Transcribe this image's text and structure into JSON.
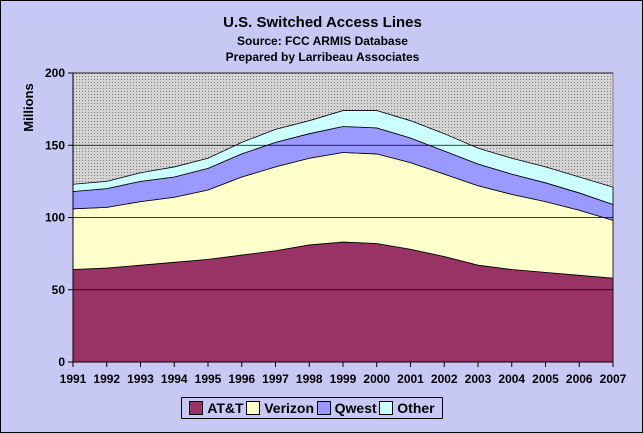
{
  "chart_data": {
    "type": "area",
    "stacked": true,
    "title": "U.S. Switched Access Lines",
    "subtitle": [
      "Source: FCC ARMIS Database",
      "Prepared by Larribeau Associates"
    ],
    "xlabel": "",
    "ylabel": "Millions",
    "ylim": [
      0,
      200
    ],
    "yticks": [
      0,
      50,
      100,
      150,
      200
    ],
    "x": [
      "1991",
      "1992",
      "1993",
      "1994",
      "1995",
      "1996",
      "1997",
      "1998",
      "1999",
      "2000",
      "2001",
      "2002",
      "2003",
      "2004",
      "2005",
      "2006",
      "2007"
    ],
    "series": [
      {
        "name": "AT&T",
        "color": "#993366",
        "values": [
          64,
          65,
          67,
          69,
          71,
          74,
          77,
          81,
          83,
          82,
          78,
          73,
          67,
          64,
          62,
          60,
          58
        ]
      },
      {
        "name": "Verizon",
        "color": "#ffffcc",
        "values": [
          42,
          42,
          44,
          45,
          48,
          54,
          58,
          60,
          62,
          62,
          60,
          57,
          55,
          52,
          49,
          45,
          40
        ]
      },
      {
        "name": "Qwest",
        "color": "#9999ff",
        "values": [
          12,
          13,
          14,
          14,
          15,
          16,
          17,
          17,
          18,
          18,
          17,
          16,
          15,
          14,
          13,
          12,
          11
        ]
      },
      {
        "name": "Other",
        "color": "#ccffff",
        "values": [
          5,
          5,
          6,
          7,
          7,
          8,
          9,
          9,
          11,
          12,
          12,
          12,
          11,
          11,
          11,
          11,
          12
        ]
      }
    ],
    "grid": true,
    "legend_position": "bottom",
    "plot_background": "#c0c0c0"
  }
}
